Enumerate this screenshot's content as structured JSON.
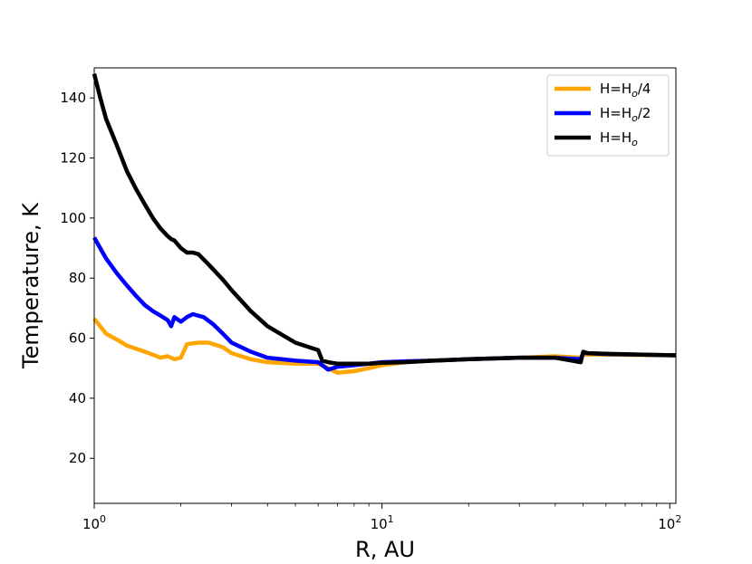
{
  "chart_data": {
    "type": "line",
    "xscale": "log",
    "xlabel": "R, AU",
    "ylabel": "Temperature, K",
    "xlim": [
      1,
      105
    ],
    "ylim": [
      5,
      150
    ],
    "xticks": [
      {
        "value": 1,
        "base": "10",
        "exp": "0"
      },
      {
        "value": 10,
        "base": "10",
        "exp": "1"
      },
      {
        "value": 100,
        "base": "10",
        "exp": "2"
      }
    ],
    "yticks": [
      20,
      40,
      60,
      80,
      100,
      120,
      140
    ],
    "grid": false,
    "legend_position": "top-right",
    "series": [
      {
        "name": "H=Ho/4",
        "label_main": "H=H",
        "label_sub": "o",
        "label_tail": "/4",
        "color": "#FFA500",
        "x": [
          1.0,
          1.1,
          1.2,
          1.3,
          1.4,
          1.5,
          1.6,
          1.7,
          1.8,
          1.9,
          2.0,
          2.1,
          2.3,
          2.5,
          2.8,
          3.0,
          3.5,
          4.0,
          5.0,
          6.0,
          6.5,
          7.0,
          8.0,
          9.0,
          10,
          12,
          15,
          20,
          30,
          40,
          49,
          50,
          52,
          60,
          80,
          105
        ],
        "y": [
          66.5,
          61.5,
          59.5,
          57.5,
          56.5,
          55.5,
          54.5,
          53.5,
          54.0,
          53.0,
          53.5,
          58.0,
          58.5,
          58.5,
          57.0,
          55.0,
          53.0,
          52.0,
          51.5,
          51.5,
          50.0,
          48.5,
          49.0,
          50.0,
          51.0,
          52.0,
          52.5,
          53.0,
          53.5,
          54.0,
          53.5,
          54.5,
          54.6,
          54.5,
          54.4,
          54.3
        ]
      },
      {
        "name": "H=Ho/2",
        "label_main": "H=H",
        "label_sub": "o",
        "label_tail": "/2",
        "color": "#0000FF",
        "x": [
          1.0,
          1.1,
          1.2,
          1.3,
          1.4,
          1.5,
          1.6,
          1.7,
          1.8,
          1.85,
          1.9,
          2.0,
          2.1,
          2.2,
          2.4,
          2.6,
          2.8,
          3.0,
          3.5,
          4.0,
          5.0,
          6.0,
          6.3,
          6.5,
          7.0,
          8.0,
          9.0,
          10,
          12,
          15,
          20,
          30,
          40,
          49,
          50,
          52,
          60,
          80,
          105
        ],
        "y": [
          93.5,
          86.5,
          81.5,
          77.5,
          74.0,
          71.0,
          69.0,
          67.5,
          66.0,
          64.0,
          67.0,
          65.5,
          67.0,
          68.0,
          67.0,
          64.5,
          61.5,
          58.5,
          55.5,
          53.5,
          52.5,
          52.0,
          50.5,
          49.5,
          50.5,
          51.0,
          51.5,
          52.0,
          52.3,
          52.5,
          53.0,
          53.5,
          53.5,
          53.0,
          55.0,
          55.0,
          54.7,
          54.5,
          54.3
        ]
      },
      {
        "name": "H=Ho",
        "label_main": "H=H",
        "label_sub": "o",
        "label_tail": "",
        "color": "#000000",
        "x": [
          1.0,
          1.05,
          1.1,
          1.2,
          1.3,
          1.4,
          1.5,
          1.6,
          1.7,
          1.8,
          1.85,
          1.9,
          2.0,
          2.1,
          2.2,
          2.3,
          2.5,
          2.8,
          3.0,
          3.5,
          4.0,
          5.0,
          6.0,
          6.2,
          6.5,
          7.0,
          8.0,
          9.0,
          10,
          12,
          15,
          20,
          30,
          40,
          49,
          50,
          52,
          60,
          80,
          105
        ],
        "y": [
          148.0,
          140.0,
          133.0,
          124.0,
          115.5,
          109.5,
          104.5,
          100.0,
          96.5,
          94.0,
          93.0,
          92.5,
          90.0,
          88.5,
          88.5,
          88.0,
          84.5,
          79.5,
          76.0,
          69.0,
          64.0,
          58.5,
          56.0,
          52.5,
          52.0,
          51.5,
          51.5,
          51.5,
          51.8,
          52.0,
          52.5,
          53.0,
          53.5,
          53.5,
          52.0,
          55.5,
          55.0,
          54.8,
          54.5,
          54.3
        ]
      }
    ]
  }
}
